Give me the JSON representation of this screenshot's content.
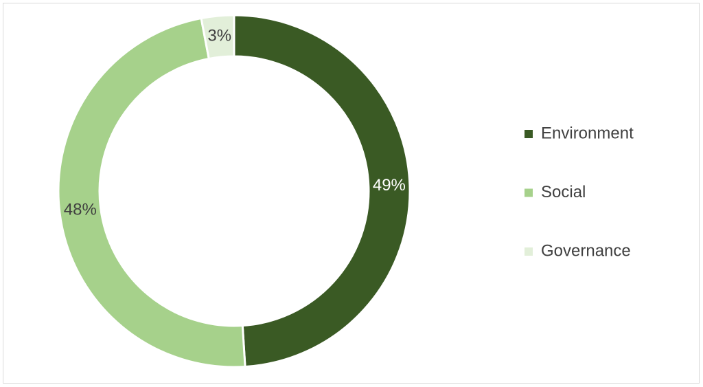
{
  "chart_data": {
    "type": "donut",
    "categories": [
      "Environment",
      "Social",
      "Governance"
    ],
    "values": [
      49,
      48,
      3
    ],
    "value_labels": [
      "49%",
      "48%",
      "3%"
    ],
    "colors": [
      "#3a5a24",
      "#a6d18b",
      "#e2efd9"
    ],
    "legend": "right"
  }
}
